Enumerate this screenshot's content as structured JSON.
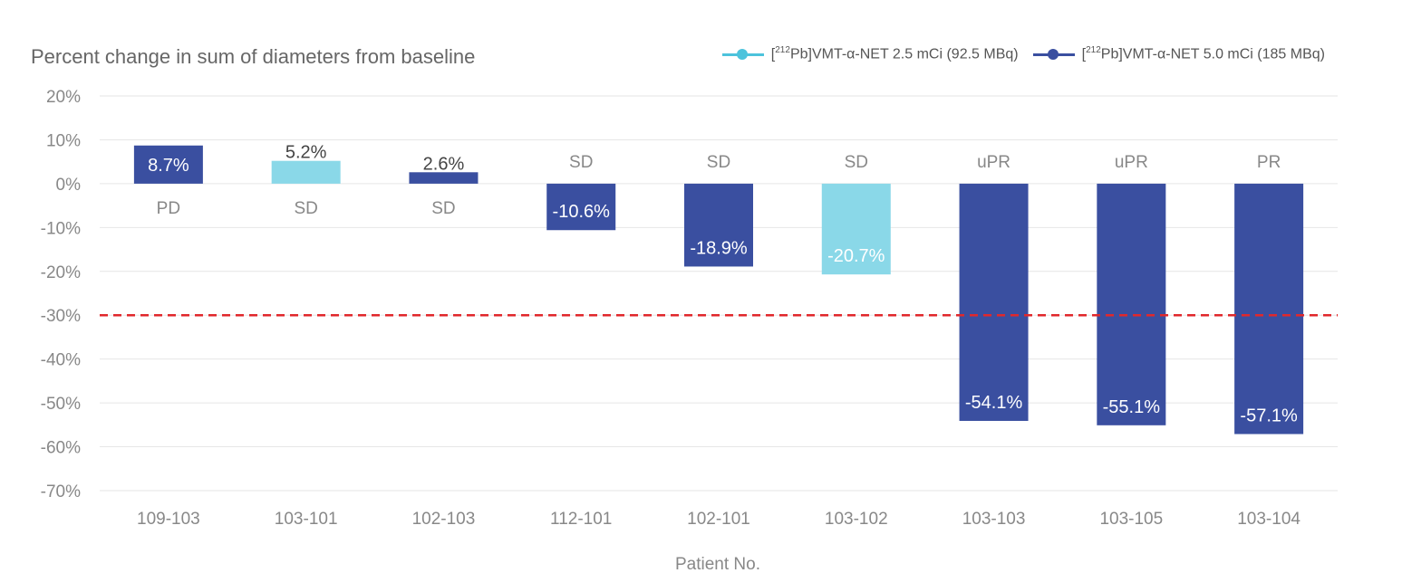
{
  "chart_data": {
    "type": "bar",
    "title": "Percent change in sum of diameters from baseline",
    "xlabel": "Patient No.",
    "ylabel": "",
    "ylim": [
      -70,
      20
    ],
    "yticks": [
      20,
      10,
      0,
      -10,
      -20,
      -30,
      -40,
      -50,
      -60,
      -70
    ],
    "ytick_labels": [
      "20%",
      "10%",
      "0%",
      "-10%",
      "-20%",
      "-30%",
      "-40%",
      "-50%",
      "-60%",
      "-70%"
    ],
    "grid": true,
    "legend_position": "top-right",
    "categories": [
      "109-103",
      "103-101",
      "102-103",
      "112-101",
      "102-101",
      "103-102",
      "103-103",
      "103-105",
      "103-104"
    ],
    "values": [
      8.7,
      5.2,
      2.6,
      -10.6,
      -18.9,
      -20.7,
      -54.1,
      -55.1,
      -57.1
    ],
    "value_labels": [
      "8.7%",
      "5.2%",
      "2.6%",
      "-10.6%",
      "-18.9%",
      "-20.7%",
      "-54.1%",
      "-55.1%",
      "-57.1%"
    ],
    "responses": [
      "PD",
      "SD",
      "SD",
      "SD",
      "SD",
      "SD",
      "uPR",
      "uPR",
      "PR"
    ],
    "series_index": [
      1,
      0,
      1,
      1,
      1,
      0,
      1,
      1,
      1
    ],
    "series": [
      {
        "name_prefix": "[",
        "name_sup": "212",
        "name_rest": "Pb]VMT-α-NET 2.5 mCi (92.5 MBq)",
        "color": "#8ad8e8",
        "legend_color": "#4cc3dc"
      },
      {
        "name_prefix": "[",
        "name_sup": "212",
        "name_rest": "Pb]VMT-α-NET 5.0 mCi (185 MBq)",
        "color": "#3a4fa0",
        "legend_color": "#3a4fa0"
      }
    ],
    "reference_line": {
      "value": -30,
      "color": "#e0282c",
      "style": "dashed"
    },
    "colors": {
      "axis_text": "#888888",
      "grid": "#e6e6e6",
      "title": "#666666"
    }
  }
}
